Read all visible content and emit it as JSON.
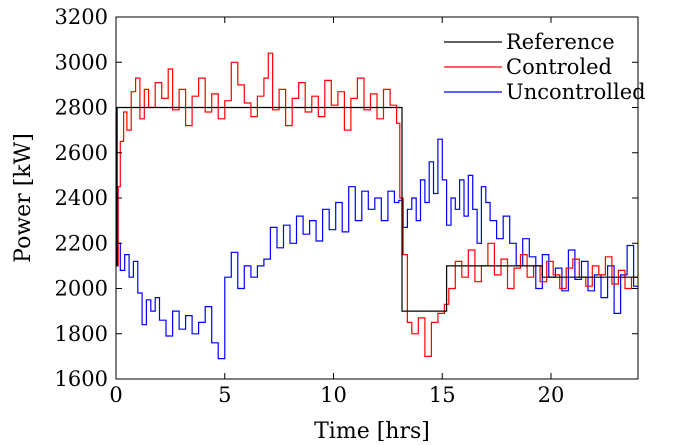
{
  "chart_data": {
    "type": "line",
    "title": "",
    "xlabel": "Time [hrs]",
    "ylabel": "Power [kW]",
    "xlim": [
      0,
      24
    ],
    "ylim": [
      1600,
      3200
    ],
    "x_ticks": [
      0,
      5,
      10,
      15,
      20
    ],
    "y_ticks": [
      1600,
      1800,
      2000,
      2200,
      2400,
      2600,
      2800,
      3000,
      3200
    ],
    "grid": false,
    "legend_position": "top-right",
    "series": [
      {
        "name": "Reference",
        "color": "#000000",
        "step": true,
        "x": [
          0,
          0.05,
          13.0,
          13.15,
          15.2,
          19.6,
          24
        ],
        "y": [
          2100,
          2800,
          2800,
          1900,
          2100,
          2050,
          2050
        ]
      },
      {
        "name": "Controled",
        "color": "#ff0000",
        "step": true,
        "x": [
          0,
          0.1,
          0.2,
          0.35,
          0.5,
          0.7,
          0.9,
          1.1,
          1.3,
          1.5,
          1.8,
          2.1,
          2.4,
          2.6,
          2.9,
          3.2,
          3.5,
          3.8,
          4.1,
          4.4,
          4.7,
          5.0,
          5.3,
          5.6,
          5.9,
          6.2,
          6.5,
          6.8,
          7.0,
          7.2,
          7.5,
          7.8,
          8.1,
          8.4,
          8.7,
          9.0,
          9.3,
          9.6,
          9.9,
          10.2,
          10.5,
          10.8,
          11.1,
          11.4,
          11.7,
          12.0,
          12.3,
          12.6,
          12.9,
          13.05,
          13.2,
          13.4,
          13.6,
          13.9,
          14.2,
          14.5,
          14.8,
          15.1,
          15.3,
          15.6,
          15.9,
          16.2,
          16.5,
          16.8,
          17.1,
          17.4,
          17.7,
          18.0,
          18.3,
          18.6,
          18.9,
          19.2,
          19.5,
          19.8,
          20.1,
          20.4,
          20.7,
          21.0,
          21.3,
          21.6,
          21.9,
          22.2,
          22.5,
          22.8,
          23.1,
          23.4,
          23.7
        ],
        "y": [
          2100,
          2450,
          2650,
          2780,
          2700,
          2870,
          2930,
          2750,
          2880,
          2800,
          2910,
          2840,
          2970,
          2790,
          2880,
          2720,
          2850,
          2930,
          2780,
          2860,
          2750,
          2830,
          3000,
          2900,
          2820,
          2760,
          2850,
          2930,
          3040,
          2790,
          2880,
          2720,
          2840,
          2910,
          2780,
          2850,
          2760,
          2920,
          2810,
          2870,
          2700,
          2840,
          2930,
          2790,
          2860,
          2750,
          2880,
          2810,
          2730,
          2400,
          2150,
          1850,
          1800,
          1870,
          1700,
          1850,
          1890,
          1930,
          2000,
          2120,
          2050,
          2170,
          2030,
          2100,
          2200,
          2060,
          2130,
          2000,
          2090,
          2150,
          2050,
          2100,
          2030,
          2120,
          2060,
          2000,
          2090,
          2130,
          2050,
          2010,
          2100,
          2060,
          2140,
          2020,
          2080,
          2000,
          2050
        ]
      },
      {
        "name": "Uncontrolled",
        "color": "#0000ff",
        "step": true,
        "x": [
          0,
          0.2,
          0.4,
          0.6,
          0.8,
          1.0,
          1.2,
          1.4,
          1.6,
          1.8,
          2.0,
          2.3,
          2.6,
          2.9,
          3.2,
          3.5,
          3.8,
          4.1,
          4.4,
          4.7,
          5.0,
          5.3,
          5.6,
          5.9,
          6.2,
          6.5,
          6.8,
          7.1,
          7.4,
          7.7,
          8.0,
          8.3,
          8.6,
          8.9,
          9.2,
          9.5,
          9.8,
          10.1,
          10.4,
          10.7,
          11.0,
          11.3,
          11.6,
          11.9,
          12.2,
          12.5,
          12.8,
          13.0,
          13.2,
          13.4,
          13.6,
          13.8,
          14.0,
          14.2,
          14.4,
          14.6,
          14.8,
          15.0,
          15.2,
          15.4,
          15.6,
          15.8,
          16.0,
          16.2,
          16.4,
          16.6,
          16.8,
          17.0,
          17.2,
          17.5,
          17.8,
          18.1,
          18.4,
          18.7,
          19.0,
          19.3,
          19.6,
          19.9,
          20.2,
          20.5,
          20.8,
          21.1,
          21.4,
          21.7,
          22.0,
          22.3,
          22.6,
          22.9,
          23.2,
          23.5,
          23.8
        ],
        "y": [
          2200,
          2080,
          2150,
          2050,
          2120,
          1980,
          1840,
          1950,
          1900,
          1960,
          1860,
          1790,
          1900,
          1820,
          1880,
          1800,
          1850,
          1920,
          1760,
          1690,
          2050,
          2160,
          2000,
          2100,
          2050,
          2100,
          2130,
          2270,
          2180,
          2280,
          2200,
          2320,
          2240,
          2300,
          2210,
          2350,
          2260,
          2380,
          2250,
          2450,
          2300,
          2430,
          2350,
          2400,
          2300,
          2430,
          2380,
          2390,
          2270,
          2350,
          2400,
          2300,
          2480,
          2380,
          2560,
          2420,
          2660,
          2480,
          2280,
          2400,
          2350,
          2480,
          2320,
          2500,
          2350,
          2200,
          2450,
          2380,
          2300,
          2220,
          2320,
          2200,
          2100,
          2220,
          2140,
          2000,
          2150,
          2050,
          2090,
          1990,
          2170,
          2040,
          2120,
          1990,
          2060,
          1960,
          2100,
          1890,
          2060,
          2190,
          2010
        ]
      }
    ]
  }
}
